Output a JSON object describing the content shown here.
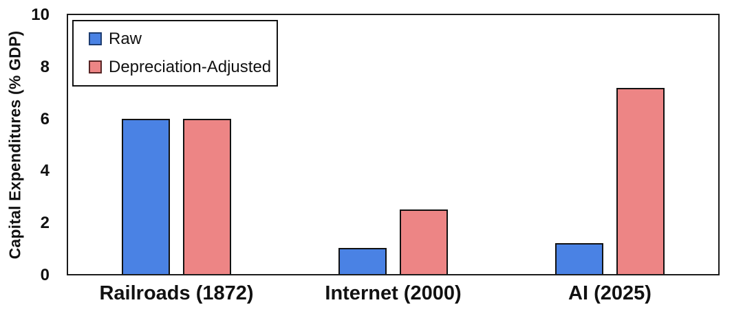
{
  "chart_data": {
    "type": "bar",
    "title": "",
    "ylabel": "Capital Expenditures (% GDP)",
    "xlabel": "",
    "categories": [
      "Railroads (1872)",
      "Internet (2000)",
      "AI (2025)"
    ],
    "series": [
      {
        "name": "Raw",
        "values": [
          6,
          1,
          1.2
        ],
        "color": "#4a82e4",
        "swatch_border_color": "#1d3c70"
      },
      {
        "name": "Depreciation-Adjusted",
        "values": [
          6,
          2.5,
          7.2
        ],
        "color": "#ed8585",
        "swatch_border_color": "#572525"
      }
    ],
    "ylim": [
      0,
      10
    ],
    "yticks": [
      0,
      2,
      4,
      6,
      8,
      10
    ],
    "grid": false,
    "legend_position": "upper-left",
    "bar_edge_color": "#111111",
    "axis_color": "#1a1a1a",
    "text_color": "#111111"
  }
}
